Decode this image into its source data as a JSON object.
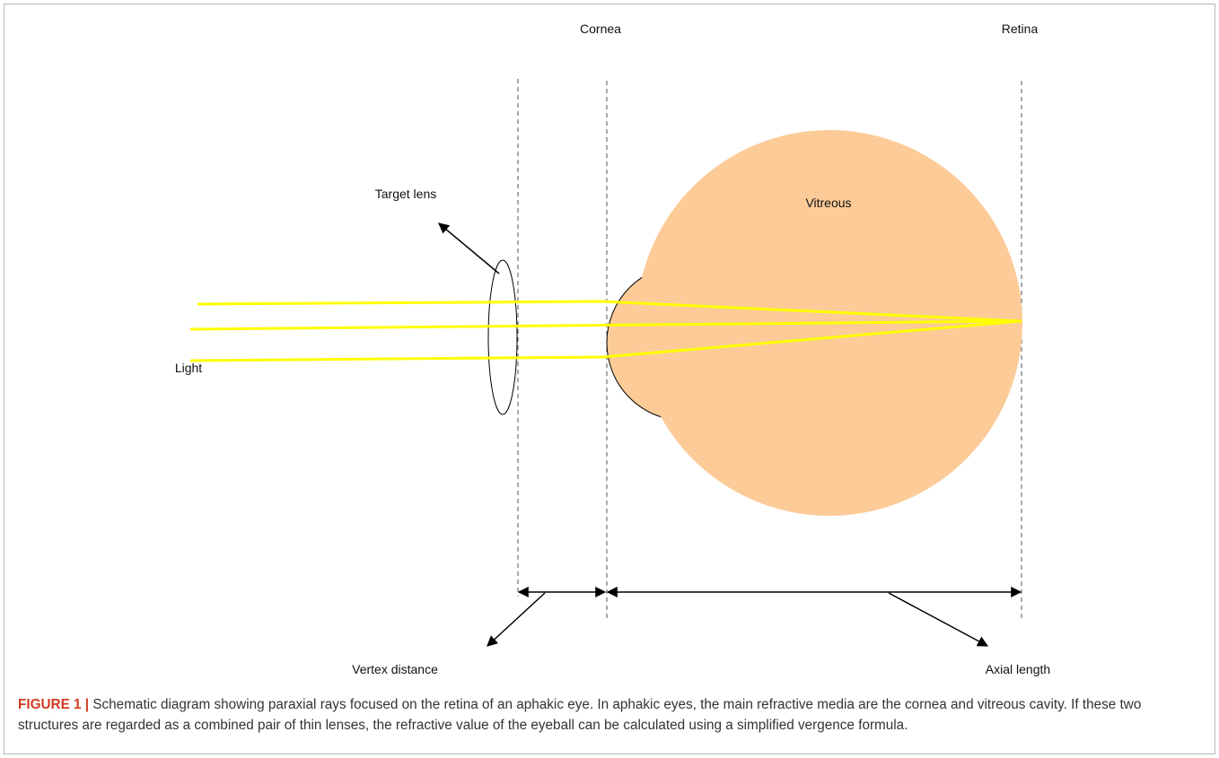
{
  "labels": {
    "cornea": "Cornea",
    "retina": "Retina",
    "target_lens": "Target lens",
    "vitreous": "Vitreous",
    "light": "Light",
    "vertex_distance": "Vertex distance",
    "axial_length": "Axial length"
  },
  "caption": {
    "label": "FIGURE 1 |",
    "text": "Schematic diagram showing paraxial rays focused on the retina of an aphakic eye. In aphakic eyes, the main refractive media are the cornea and vitreous cavity. If these two structures are regarded as a combined pair of thin lenses, the refractive value of the eyeball can be calculated using a simplified vergence formula."
  }
}
